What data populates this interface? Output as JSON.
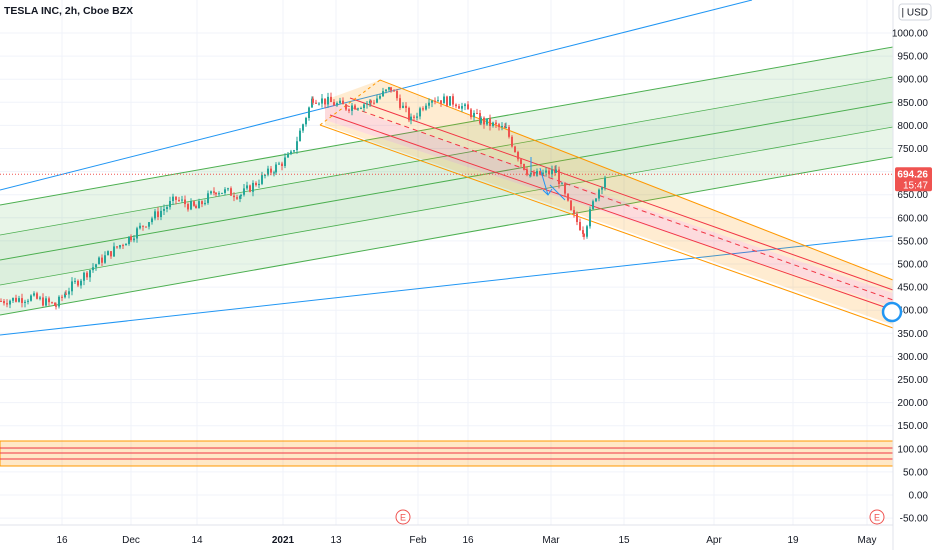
{
  "chart_data": {
    "type": "candlestick",
    "title": "TESLA INC, 2h, Cboe BZX",
    "currency_label": "USD",
    "ylim": [
      -70,
      1080
    ],
    "y_ticks": [
      -50,
      0,
      50,
      100,
      150,
      200,
      250,
      300,
      350,
      400,
      450,
      500,
      550,
      600,
      650,
      700,
      750,
      800,
      850,
      900,
      950,
      1000
    ],
    "y_tick_labels": [
      "-50.00",
      "0.00",
      "50.00",
      "100.00",
      "150.00",
      "200.00",
      "250.00",
      "300.00",
      "350.00",
      "400.00",
      "450.00",
      "500.00",
      "550.00",
      "600.00",
      "650.00",
      "700.00",
      "750.00",
      "800.00",
      "850.00",
      "900.00",
      "950.00",
      "1000.00"
    ],
    "x_tick_labels": [
      "16",
      "Dec",
      "14",
      "2021",
      "13",
      "Feb",
      "16",
      "Mar",
      "15",
      "Apr",
      "19",
      "May"
    ],
    "last_price": {
      "value": "694.26",
      "value_num": 694.26,
      "countdown": "15:47"
    },
    "price_series": [
      {
        "date": "Nov 02",
        "close": 420
      },
      {
        "date": "Nov 09",
        "close": 428
      },
      {
        "date": "Nov 13",
        "close": 410
      },
      {
        "date": "Nov 17",
        "close": 440
      },
      {
        "date": "Nov 24",
        "close": 500
      },
      {
        "date": "Dec 01",
        "close": 560
      },
      {
        "date": "Dec 04",
        "close": 590
      },
      {
        "date": "Dec 10",
        "close": 640
      },
      {
        "date": "Dec 14",
        "close": 620
      },
      {
        "date": "Dec 18",
        "close": 660
      },
      {
        "date": "Dec 24",
        "close": 650
      },
      {
        "date": "Dec 31",
        "close": 710
      },
      {
        "date": "Jan 04",
        "close": 735
      },
      {
        "date": "Jan 08",
        "close": 860
      },
      {
        "date": "Jan 13",
        "close": 840
      },
      {
        "date": "Jan 20",
        "close": 850
      },
      {
        "date": "Jan 26",
        "close": 880
      },
      {
        "date": "Jan 29",
        "close": 810
      },
      {
        "date": "Feb 03",
        "close": 860
      },
      {
        "date": "Feb 09",
        "close": 850
      },
      {
        "date": "Feb 15",
        "close": 810
      },
      {
        "date": "Feb 19",
        "close": 790
      },
      {
        "date": "Feb 22",
        "close": 720
      },
      {
        "date": "Feb 25",
        "close": 690
      },
      {
        "date": "Mar 01",
        "close": 700
      },
      {
        "date": "Mar 04",
        "close": 610
      },
      {
        "date": "Mar 08",
        "close": 570
      },
      {
        "date": "Mar 10",
        "close": 650
      },
      {
        "date": "Mar 11",
        "close": 694.26
      }
    ],
    "earnings_markers": [
      {
        "label": "E"
      },
      {
        "label": "E"
      }
    ],
    "colors": {
      "up": "#26a69a",
      "down": "#ef5350",
      "green_channel": "#4caf50",
      "red_channel": "#f23645",
      "orange_channel": "#ff9800",
      "blue_line": "#2196f3",
      "price_tag": "#ef5350"
    }
  }
}
